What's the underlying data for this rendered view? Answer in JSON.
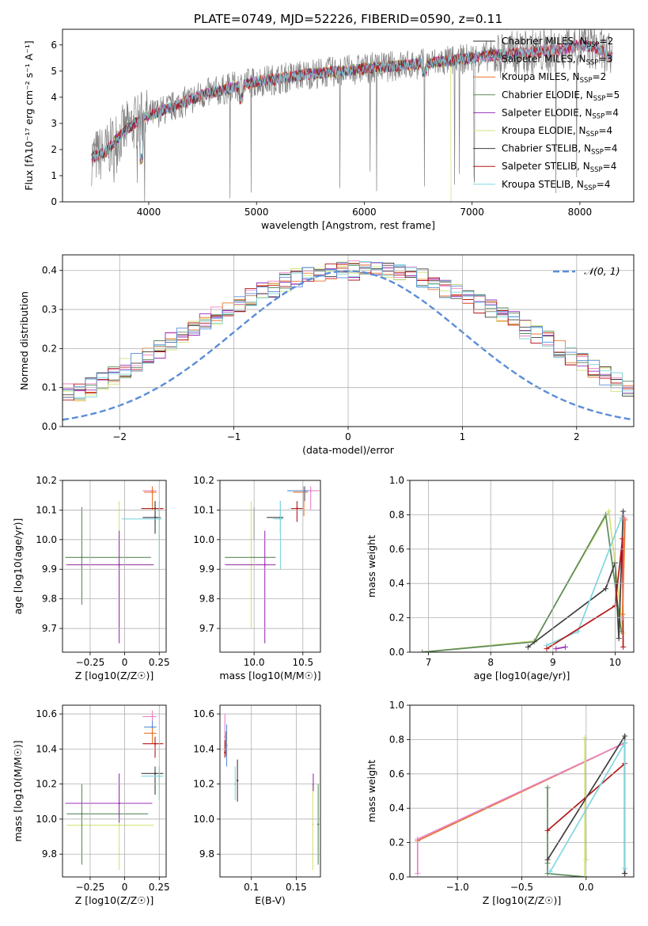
{
  "title": "PLATE=0749, MJD=52226, FIBERID=0590, z=0.11",
  "colors": {
    "chabrier_miles": "#2b2b2b",
    "salpeter_miles": "#e882c6",
    "kroupa_miles": "#e8752a",
    "chabrier_elodie": "#5e8a5e",
    "salpeter_elodie": "#9b2fb7",
    "kroupa_elodie": "#d6e27a",
    "chabrier_stelib": "#3e3e3e",
    "salpeter_stelib": "#b51818",
    "kroupa_stelib": "#7fd7e0",
    "data": "#808080",
    "normal": "#5a8dd8"
  },
  "chart_data": [
    {
      "type": "line",
      "id": "spectrum",
      "xlabel": "wavelength [Angstrom, rest frame]",
      "ylabel": "Flux [fλ10⁻¹⁷ erg cm⁻² s⁻¹ A⁻¹]",
      "xlim": [
        3200,
        8500
      ],
      "ylim": [
        0,
        6.6
      ],
      "xticks": [
        4000,
        5000,
        6000,
        7000,
        8000
      ],
      "yticks": [
        0,
        1,
        2,
        3,
        4,
        5,
        6
      ],
      "grid": false,
      "legend": "top-right",
      "continuum": {
        "x": [
          3470,
          3600,
          3700,
          3800,
          3900,
          4000,
          4200,
          4500,
          4800,
          5000,
          5200,
          5500,
          5800,
          6000,
          6300,
          6600,
          6900,
          7200,
          7500,
          7800,
          8000,
          8150,
          8300
        ],
        "y": [
          1.7,
          1.9,
          2.4,
          2.8,
          3.1,
          3.3,
          3.6,
          4.1,
          4.4,
          4.6,
          4.7,
          4.9,
          5.0,
          5.1,
          5.2,
          5.3,
          5.45,
          5.6,
          5.7,
          5.8,
          6.0,
          5.9,
          5.5
        ]
      },
      "legend_entries": [
        "Chabrier MILES, N_SSP=2",
        "Salpeter MILES, N_SSP=3",
        "Kroupa MILES, N_SSP=2",
        "Chabrier ELODIE, N_SSP=5",
        "Salpeter ELODIE, N_SSP=4",
        "Kroupa ELODIE, N_SSP=4",
        "Chabrier STELIB, N_SSP=4",
        "Salpeter STELIB, N_SSP=4",
        "Kroupa STELIB, N_SSP=4"
      ],
      "legend_labels": [
        {
          "pre": "Chabrier MILES, N",
          "sub": "SSP",
          "post": "=2"
        },
        {
          "pre": "Salpeter MILES, N",
          "sub": "SSP",
          "post": "=3"
        },
        {
          "pre": "Kroupa MILES, N",
          "sub": "SSP",
          "post": "=2"
        },
        {
          "pre": "Chabrier ELODIE, N",
          "sub": "SSP",
          "post": "=5"
        },
        {
          "pre": "Salpeter ELODIE, N",
          "sub": "SSP",
          "post": "=4"
        },
        {
          "pre": "Kroupa ELODIE, N",
          "sub": "SSP",
          "post": "=4"
        },
        {
          "pre": "Chabrier STELIB, N",
          "sub": "SSP",
          "post": "=4"
        },
        {
          "pre": "Salpeter STELIB, N",
          "sub": "SSP",
          "post": "=4"
        },
        {
          "pre": "Kroupa STELIB, N",
          "sub": "SSP",
          "post": "=4"
        }
      ]
    },
    {
      "type": "histogram",
      "id": "residuals",
      "xlabel": "(data-model)/error",
      "ylabel": "Normed distribution",
      "xlim": [
        -2.5,
        2.5
      ],
      "ylim": [
        0,
        0.44
      ],
      "xticks": [
        -2,
        -1,
        0,
        1,
        2
      ],
      "yticks": [
        0.0,
        0.1,
        0.2,
        0.3,
        0.4
      ],
      "grid": true,
      "legend": "top-right",
      "legend_entry": "𝒩(0, 1)",
      "bin_width": 0.1,
      "envelope": [
        0.02,
        0.025,
        0.03,
        0.035,
        0.04,
        0.05,
        0.055,
        0.06,
        0.07,
        0.085,
        0.09,
        0.1,
        0.115,
        0.13,
        0.15,
        0.165,
        0.18,
        0.2,
        0.22,
        0.235,
        0.25,
        0.27,
        0.285,
        0.3,
        0.315,
        0.33,
        0.345,
        0.355,
        0.37,
        0.38,
        0.385,
        0.39,
        0.395,
        0.4,
        0.4,
        0.4,
        0.4,
        0.395,
        0.39,
        0.385,
        0.38,
        0.37,
        0.355,
        0.345,
        0.33,
        0.315,
        0.3,
        0.285,
        0.27,
        0.25,
        0.235,
        0.22,
        0.2,
        0.18,
        0.165,
        0.15,
        0.13,
        0.115,
        0.1,
        0.09,
        0.085,
        0.07,
        0.06,
        0.055,
        0.05,
        0.04,
        0.035,
        0.03,
        0.025,
        0.022
      ]
    },
    {
      "type": "scatter",
      "id": "age_vs_Z",
      "xlabel": "Z [log10(Z/Z☉)]",
      "ylabel": "age  [log10(age/yr)]",
      "xlim": [
        -0.45,
        0.3
      ],
      "ylim": [
        9.62,
        10.2
      ],
      "xticks": [
        -0.25,
        0.0,
        0.25
      ],
      "yticks": [
        9.7,
        9.8,
        9.9,
        10.0,
        10.1,
        10.2
      ],
      "grid": true,
      "points": [
        {
          "m": "kroupa_elodie",
          "x": -0.04,
          "y": 9.915,
          "xe": [
            -0.43,
            0.21
          ],
          "ye": [
            9.7,
            10.13
          ]
        },
        {
          "m": "chabrier_elodie",
          "x": -0.31,
          "y": 9.94,
          "xe": [
            -0.43,
            0.19
          ],
          "ye": [
            9.78,
            10.11
          ]
        },
        {
          "m": "salpeter_elodie",
          "x": -0.04,
          "y": 9.915,
          "xe": [
            -0.42,
            0.21
          ],
          "ye": [
            9.65,
            10.03
          ]
        },
        {
          "m": "salpeter_miles",
          "x": 0.2,
          "y": 10.165,
          "xe": [
            0.13,
            0.23
          ],
          "ye": [
            10.1,
            10.18
          ]
        },
        {
          "m": "kroupa_miles",
          "x": 0.2,
          "y": 10.16,
          "xe": [
            0.14,
            0.23
          ],
          "ye": [
            10.1,
            10.18
          ]
        },
        {
          "m": "salpeter_stelib",
          "x": 0.22,
          "y": 10.105,
          "xe": [
            0.12,
            0.28
          ],
          "ye": [
            10.06,
            10.13
          ]
        },
        {
          "m": "chabrier_stelib",
          "x": 0.22,
          "y": 10.075,
          "xe": [
            0.13,
            0.26
          ],
          "ye": [
            10.02,
            10.13
          ]
        },
        {
          "m": "kroupa_stelib",
          "x": 0.25,
          "y": 10.07,
          "xe": [
            -0.02,
            0.27
          ],
          "ye": [
            9.9,
            10.13
          ]
        }
      ]
    },
    {
      "type": "scatter",
      "id": "age_vs_mass",
      "xlabel": "mass [log10(M/M☉)]",
      "ylabel": "",
      "xlim": [
        9.65,
        10.68
      ],
      "ylim": [
        9.62,
        10.2
      ],
      "xticks": [
        10.0,
        10.5
      ],
      "yticks": [
        9.7,
        9.8,
        9.9,
        10.0,
        10.1,
        10.2
      ],
      "grid": true,
      "points": [
        {
          "m": "kroupa_elodie",
          "x": 9.97,
          "y": 9.915,
          "xe": [
            9.72,
            10.22
          ],
          "ye": [
            9.7,
            10.13
          ]
        },
        {
          "m": "chabrier_elodie",
          "x": 10.0,
          "y": 9.94,
          "xe": [
            9.7,
            10.22
          ],
          "ye": [
            10.0,
            10.11
          ]
        },
        {
          "m": "salpeter_elodie",
          "x": 10.11,
          "y": 9.915,
          "xe": [
            9.7,
            10.22
          ],
          "ye": [
            9.65,
            10.03
          ]
        },
        {
          "m": "salpeter_miles",
          "x": 10.58,
          "y": 10.165,
          "xe": [
            10.5,
            10.67
          ],
          "ye": [
            10.1,
            10.18
          ]
        },
        {
          "m": "kroupa_miles",
          "x": 10.51,
          "y": 10.16,
          "xe": [
            10.4,
            10.55
          ],
          "ye": [
            10.08,
            10.18
          ]
        },
        {
          "m": "normal",
          "x": 10.52,
          "y": 10.165,
          "xe": [
            10.34,
            10.56
          ],
          "ye": [
            10.13,
            10.18
          ]
        },
        {
          "m": "salpeter_stelib",
          "x": 10.44,
          "y": 10.105,
          "xe": [
            10.38,
            10.5
          ],
          "ye": [
            10.06,
            10.13
          ]
        },
        {
          "m": "chabrier_stelib",
          "x": 10.27,
          "y": 10.075,
          "xe": [
            10.13,
            10.3
          ],
          "ye": [
            10.02,
            10.13
          ]
        },
        {
          "m": "kroupa_stelib",
          "x": 10.27,
          "y": 10.07,
          "xe": [
            10.2,
            10.3
          ],
          "ye": [
            9.9,
            10.13
          ]
        }
      ]
    },
    {
      "type": "line",
      "id": "weight_vs_age",
      "xlabel": "age  [log10(age/yr)]",
      "ylabel": "mass weight",
      "xlim": [
        6.7,
        10.3
      ],
      "ylim": [
        0,
        1.0
      ],
      "xticks": [
        7,
        8,
        9,
        10
      ],
      "yticks": [
        0.0,
        0.2,
        0.4,
        0.6,
        0.8,
        1.0
      ],
      "grid": true,
      "series": [
        {
          "m": "kroupa_elodie",
          "points": [
            [
              6.9,
              0.0
            ],
            [
              8.7,
              0.065
            ],
            [
              9.9,
              0.82
            ],
            [
              10.13,
              0.11
            ]
          ]
        },
        {
          "m": "chabrier_elodie",
          "points": [
            [
              6.9,
              0.0
            ],
            [
              8.7,
              0.06
            ],
            [
              9.85,
              0.8
            ],
            [
              10.1,
              0.12
            ]
          ]
        },
        {
          "m": "chabrier_stelib",
          "points": [
            [
              8.6,
              0.03
            ],
            [
              9.85,
              0.37
            ],
            [
              10.0,
              0.52
            ],
            [
              10.06,
              0.08
            ],
            [
              10.13,
              0.82
            ]
          ]
        },
        {
          "m": "kroupa_stelib",
          "points": [
            [
              8.9,
              0.04
            ],
            [
              9.4,
              0.12
            ],
            [
              10.1,
              0.78
            ]
          ]
        },
        {
          "m": "salpeter_stelib",
          "points": [
            [
              8.9,
              0.02
            ],
            [
              10.0,
              0.27
            ],
            [
              10.12,
              0.66
            ],
            [
              10.13,
              0.03
            ]
          ]
        },
        {
          "m": "salpeter_miles",
          "points": [
            [
              10.12,
              0.2
            ],
            [
              10.15,
              0.78
            ]
          ]
        },
        {
          "m": "kroupa_miles",
          "points": [
            [
              10.12,
              0.22
            ],
            [
              10.16,
              0.77
            ]
          ]
        },
        {
          "m": "salpeter_elodie",
          "points": [
            [
              9.05,
              0.02
            ],
            [
              9.2,
              0.03
            ]
          ]
        }
      ]
    },
    {
      "type": "scatter",
      "id": "mass_vs_Z",
      "xlabel": "Z [log10(Z/Z☉)]",
      "ylabel": "mass [log10(M/M☉)]",
      "xlim": [
        -0.45,
        0.3
      ],
      "ylim": [
        9.67,
        10.65
      ],
      "xticks": [
        -0.25,
        0.0,
        0.25
      ],
      "yticks": [
        9.8,
        10.0,
        10.2,
        10.4,
        10.6
      ],
      "grid": true,
      "points": [
        {
          "m": "kroupa_elodie",
          "x": -0.04,
          "y": 9.965,
          "xe": [
            -0.42,
            0.21
          ],
          "ye": [
            9.71,
            10.2
          ]
        },
        {
          "m": "chabrier_elodie",
          "x": -0.31,
          "y": 10.03,
          "xe": [
            -0.42,
            0.17
          ],
          "ye": [
            9.74,
            10.2
          ]
        },
        {
          "m": "salpeter_elodie",
          "x": -0.04,
          "y": 10.09,
          "xe": [
            -0.43,
            0.2
          ],
          "ye": [
            9.98,
            10.26
          ]
        },
        {
          "m": "salpeter_miles",
          "x": 0.2,
          "y": 10.585,
          "xe": [
            0.13,
            0.23
          ],
          "ye": [
            10.54,
            10.62
          ]
        },
        {
          "m": "normal",
          "x": 0.2,
          "y": 10.525,
          "xe": [
            0.14,
            0.23
          ],
          "ye": [
            10.47,
            10.56
          ]
        },
        {
          "m": "kroupa_miles",
          "x": 0.2,
          "y": 10.49,
          "xe": [
            0.14,
            0.23
          ],
          "ye": [
            10.43,
            10.52
          ]
        },
        {
          "m": "salpeter_stelib",
          "x": 0.22,
          "y": 10.43,
          "xe": [
            0.13,
            0.28
          ],
          "ye": [
            10.35,
            10.47
          ]
        },
        {
          "m": "chabrier_stelib",
          "x": 0.22,
          "y": 10.26,
          "xe": [
            0.12,
            0.28
          ],
          "ye": [
            10.14,
            10.3
          ]
        },
        {
          "m": "kroupa_stelib",
          "x": 0.25,
          "y": 10.245,
          "xe": [
            0.12,
            0.28
          ],
          "ye": [
            10.11,
            10.3
          ]
        }
      ]
    },
    {
      "type": "scatter",
      "id": "mass_vs_ebv",
      "xlabel": "E(B-V)",
      "ylabel": "",
      "xlim": [
        0.065,
        0.177
      ],
      "ylim": [
        9.67,
        10.65
      ],
      "xticks": [
        0.1,
        0.15
      ],
      "yticks": [
        9.8,
        10.0,
        10.2,
        10.4,
        10.6
      ],
      "grid": true,
      "points": [
        {
          "m": "salpeter_miles",
          "x": 0.0705,
          "y": 10.47,
          "ye": [
            10.4,
            10.6
          ]
        },
        {
          "m": "kroupa_miles",
          "x": 0.0715,
          "y": 10.43,
          "ye": [
            10.36,
            10.5
          ]
        },
        {
          "m": "normal",
          "x": 0.0725,
          "y": 10.42,
          "ye": [
            10.3,
            10.54
          ]
        },
        {
          "m": "salpeter_stelib",
          "x": 0.0705,
          "y": 10.38,
          "ye": [
            10.35,
            10.45
          ]
        },
        {
          "m": "kroupa_stelib",
          "x": 0.082,
          "y": 10.2,
          "ye": [
            10.11,
            10.3
          ]
        },
        {
          "m": "chabrier_stelib",
          "x": 0.0845,
          "y": 10.22,
          "ye": [
            10.1,
            10.34
          ]
        },
        {
          "m": "kroupa_elodie",
          "x": 0.1685,
          "y": 9.97,
          "ye": [
            9.71,
            10.2
          ]
        },
        {
          "m": "salpeter_elodie",
          "x": 0.169,
          "y": 10.2,
          "ye": [
            10.16,
            10.26
          ]
        },
        {
          "m": "chabrier_elodie",
          "x": 0.1745,
          "y": 9.97,
          "ye": [
            9.74,
            10.2
          ]
        }
      ]
    },
    {
      "type": "line",
      "id": "weight_vs_Z",
      "xlabel": "Z [log10(Z/Z☉)]",
      "ylabel": "mass weight",
      "xlim": [
        -1.37,
        0.37
      ],
      "ylim": [
        0,
        1.0
      ],
      "xticks": [
        -1.0,
        -0.5,
        0.0
      ],
      "yticks": [
        0.0,
        0.2,
        0.4,
        0.6,
        0.8,
        1.0
      ],
      "grid": true,
      "series": [
        {
          "m": "kroupa_miles",
          "points": [
            [
              -1.31,
              0.21
            ],
            [
              0.3,
              0.78
            ]
          ]
        },
        {
          "m": "salpeter_miles",
          "points": [
            [
              -1.31,
              0.02
            ],
            [
              -1.31,
              0.22
            ],
            [
              0.3,
              0.78
            ]
          ]
        },
        {
          "m": "chabrier_elodie",
          "points": [
            [
              -0.3,
              0.52
            ],
            [
              -0.3,
              0.08
            ],
            [
              -0.3,
              0.02
            ],
            [
              -0.01,
              0.0
            ]
          ]
        },
        {
          "m": "kroupa_elodie",
          "points": [
            [
              -0.01,
              0.0
            ],
            [
              -0.01,
              0.81
            ],
            [
              0.0,
              0.1
            ]
          ]
        },
        {
          "m": "salpeter_stelib",
          "points": [
            [
              -0.3,
              0.27
            ],
            [
              0.3,
              0.66
            ],
            [
              0.3,
              0.02
            ]
          ]
        },
        {
          "m": "chabrier_stelib",
          "points": [
            [
              -0.3,
              0.1
            ],
            [
              0.3,
              0.82
            ],
            [
              0.3,
              0.02
            ]
          ]
        },
        {
          "m": "kroupa_stelib",
          "points": [
            [
              -0.28,
              0.03
            ],
            [
              0.3,
              0.78
            ],
            [
              0.3,
              0.05
            ]
          ]
        }
      ]
    }
  ]
}
